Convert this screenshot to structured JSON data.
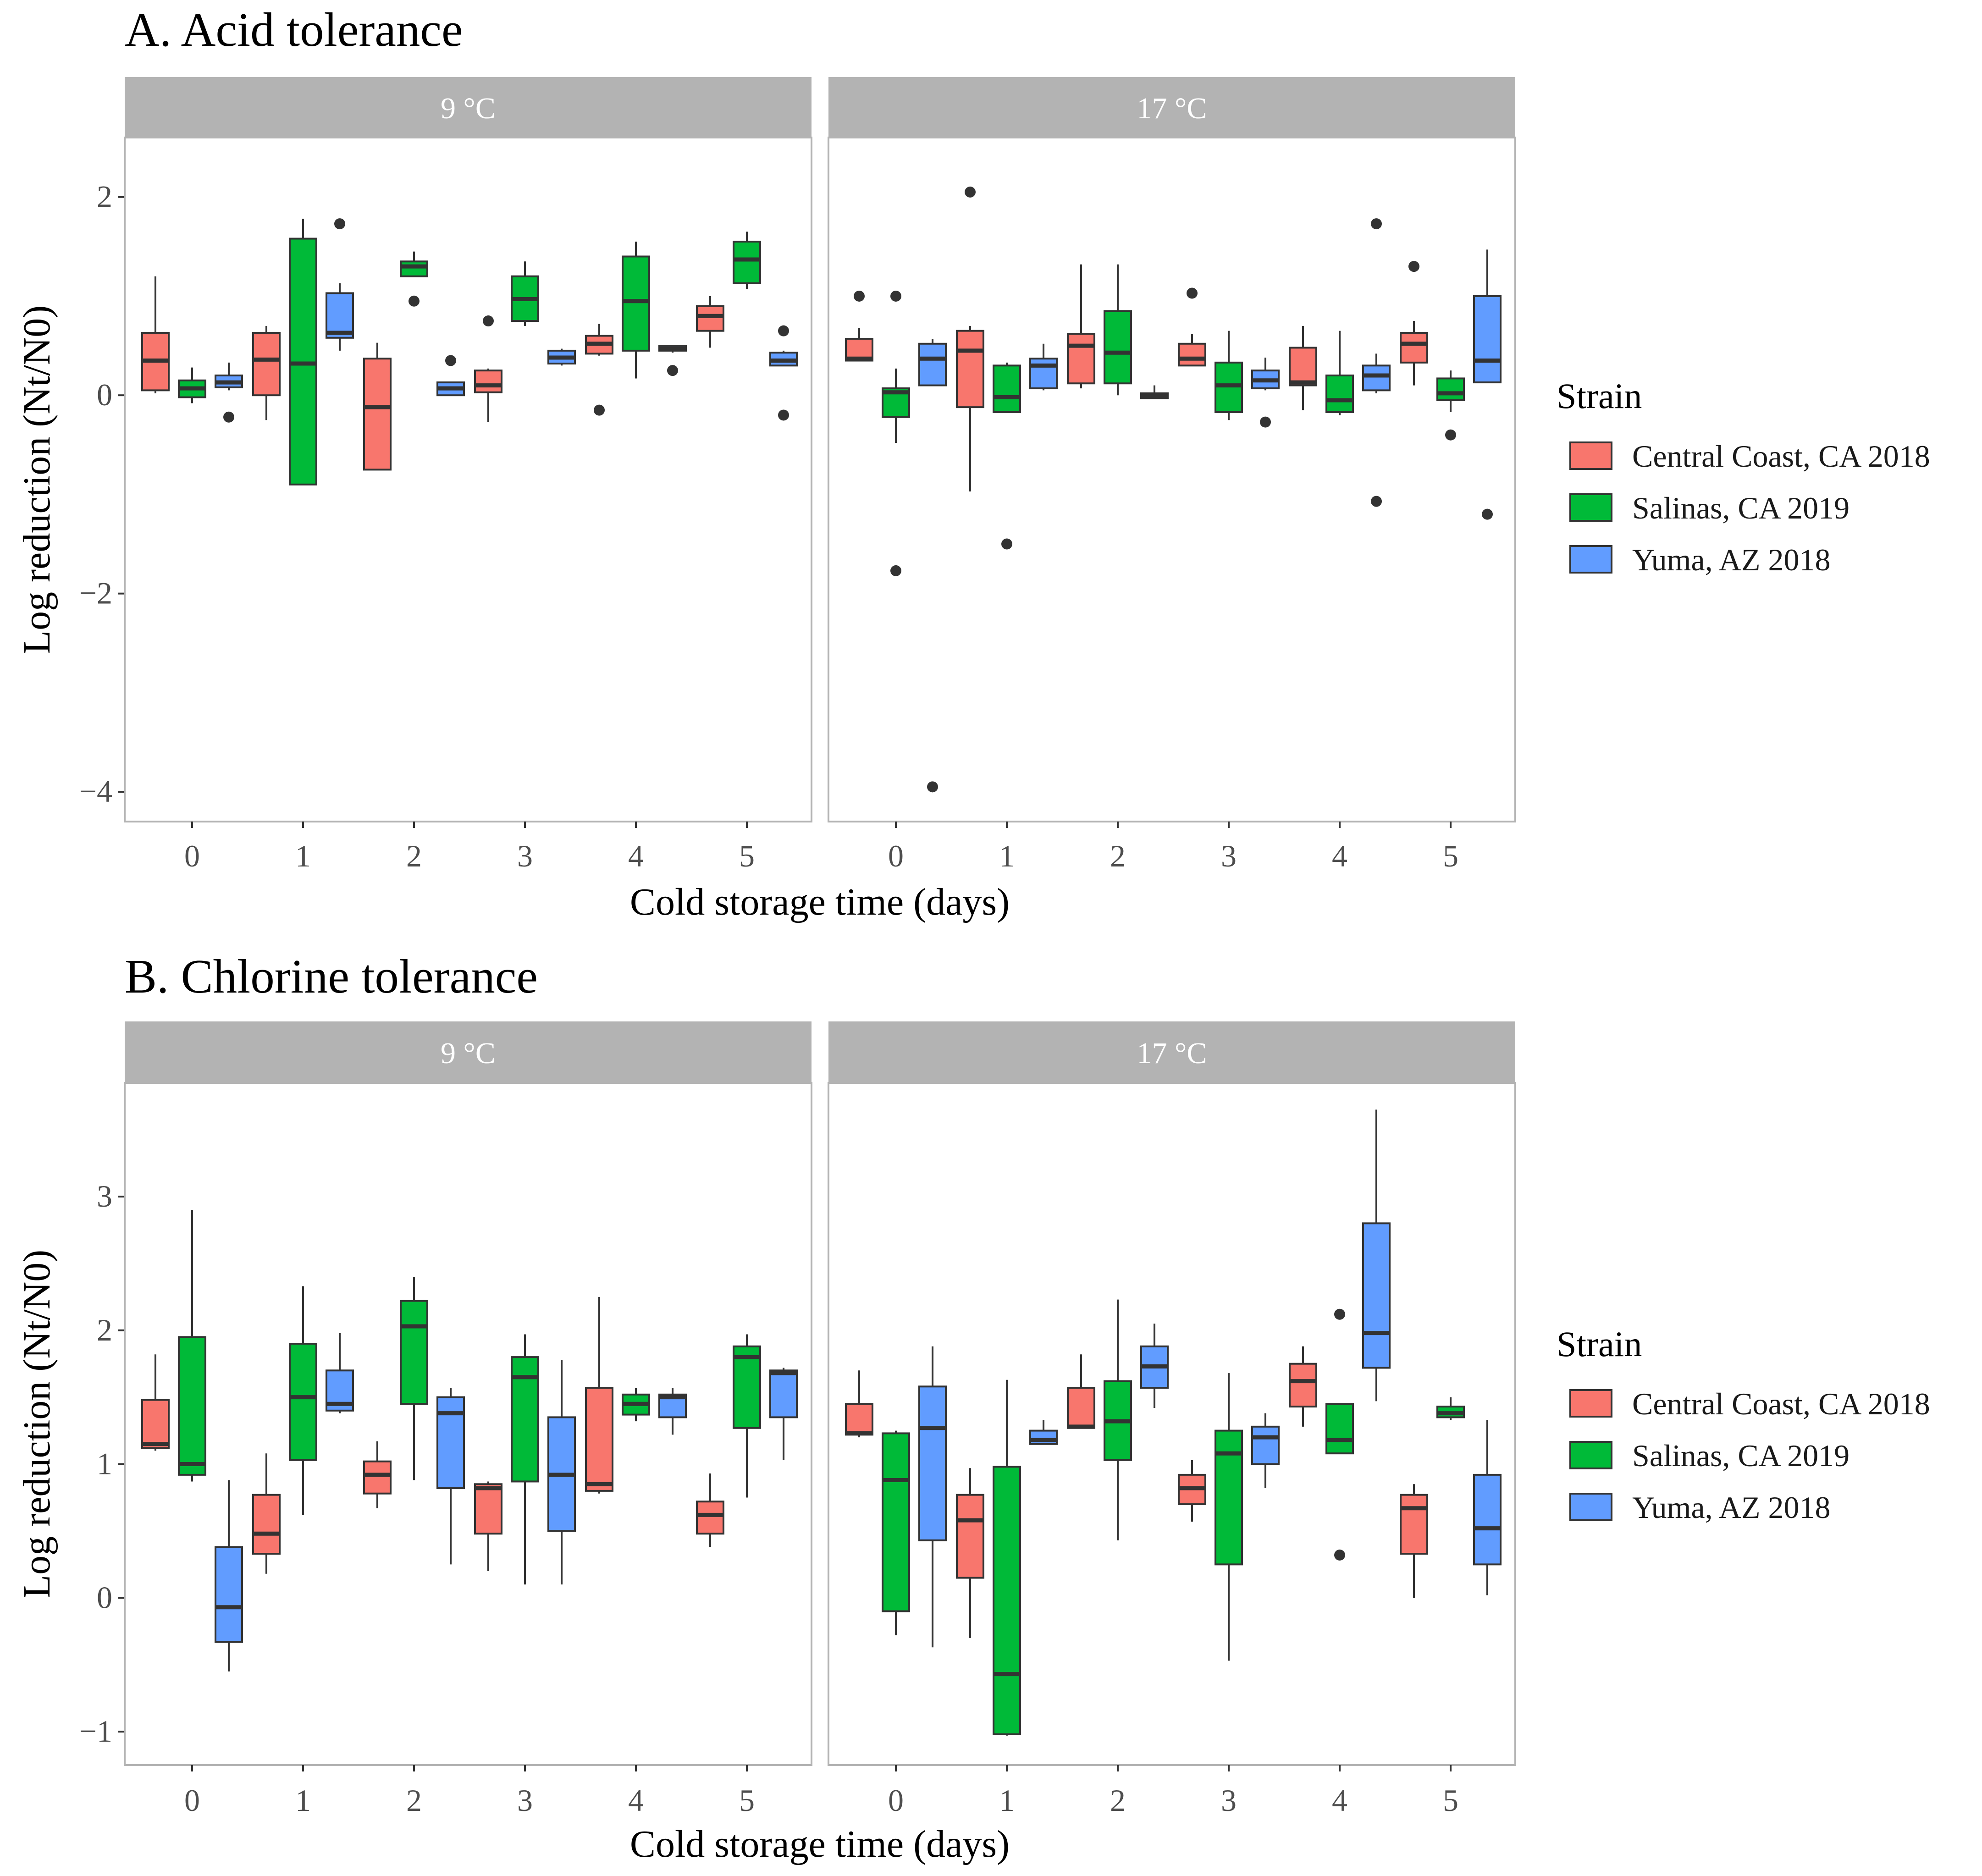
{
  "legend": {
    "title": "Strain",
    "items": [
      {
        "label": "Central Coast, CA 2018",
        "color": "#F8766D"
      },
      {
        "label": "Salinas, CA 2019",
        "color": "#00BA38"
      },
      {
        "label": "Yuma, AZ 2018",
        "color": "#619CFF"
      }
    ]
  },
  "chart_data": [
    {
      "type": "boxplot",
      "title": "A. Acid tolerance",
      "xlabel": "Cold storage time (days)",
      "ylabel": "Log reduction (Nt/N0)",
      "ylim": [
        -4.3,
        2.6
      ],
      "yticks": [
        -4,
        -2,
        0,
        2
      ],
      "yticklabels": [
        "−4",
        "−2",
        "0",
        "2"
      ],
      "categories": [
        "0",
        "1",
        "2",
        "3",
        "4",
        "5"
      ],
      "series_names": [
        "Central Coast, CA 2018",
        "Salinas, CA 2019",
        "Yuma, AZ 2018"
      ],
      "facets": [
        {
          "label": "9 °C",
          "boxes": [
            [
              {
                "lo": 0.02,
                "q1": 0.05,
                "med": 0.35,
                "q3": 0.63,
                "hi": 1.2
              },
              {
                "lo": -0.08,
                "q1": -0.02,
                "med": 0.07,
                "q3": 0.15,
                "hi": 0.28
              },
              {
                "lo": 0.05,
                "q1": 0.08,
                "med": 0.13,
                "q3": 0.2,
                "hi": 0.33,
                "out": [
                  -0.22
                ]
              }
            ],
            [
              {
                "lo": -0.25,
                "q1": 0.0,
                "med": 0.36,
                "q3": 0.63,
                "hi": 0.7
              },
              {
                "lo": -0.9,
                "q1": -0.9,
                "med": 0.32,
                "q3": 1.58,
                "hi": 1.78
              },
              {
                "lo": 0.45,
                "q1": 0.58,
                "med": 0.63,
                "q3": 1.03,
                "hi": 1.13,
                "out": [
                  1.73
                ]
              }
            ],
            [
              {
                "lo": -0.75,
                "q1": -0.75,
                "med": -0.12,
                "q3": 0.37,
                "hi": 0.53
              },
              {
                "lo": 1.2,
                "q1": 1.2,
                "med": 1.3,
                "q3": 1.35,
                "hi": 1.45,
                "out": [
                  0.95
                ]
              },
              {
                "lo": 0.0,
                "q1": 0.0,
                "med": 0.07,
                "q3": 0.13,
                "hi": 0.13,
                "out": [
                  0.35
                ]
              }
            ],
            [
              {
                "lo": -0.27,
                "q1": 0.03,
                "med": 0.1,
                "q3": 0.25,
                "hi": 0.27,
                "out": [
                  0.75
                ]
              },
              {
                "lo": 0.7,
                "q1": 0.75,
                "med": 0.97,
                "q3": 1.2,
                "hi": 1.35
              },
              {
                "lo": 0.3,
                "q1": 0.32,
                "med": 0.38,
                "q3": 0.45,
                "hi": 0.47
              }
            ],
            [
              {
                "lo": 0.4,
                "q1": 0.42,
                "med": 0.52,
                "q3": 0.6,
                "hi": 0.72,
                "out": [
                  -0.15
                ]
              },
              {
                "lo": 0.17,
                "q1": 0.45,
                "med": 0.95,
                "q3": 1.4,
                "hi": 1.55
              },
              {
                "lo": 0.43,
                "q1": 0.45,
                "med": 0.47,
                "q3": 0.5,
                "hi": 0.5,
                "out": [
                  0.25
                ]
              }
            ],
            [
              {
                "lo": 0.48,
                "q1": 0.65,
                "med": 0.8,
                "q3": 0.9,
                "hi": 1.0
              },
              {
                "lo": 1.07,
                "q1": 1.13,
                "med": 1.37,
                "q3": 1.55,
                "hi": 1.65
              },
              {
                "lo": 0.3,
                "q1": 0.3,
                "med": 0.35,
                "q3": 0.43,
                "hi": 0.45,
                "out": [
                  0.65,
                  -0.2
                ]
              }
            ]
          ]
        },
        {
          "label": "17 °C",
          "boxes": [
            [
              {
                "lo": 0.35,
                "q1": 0.35,
                "med": 0.37,
                "q3": 0.57,
                "hi": 0.68,
                "out": [
                  1.0
                ]
              },
              {
                "lo": -0.48,
                "q1": -0.22,
                "med": 0.03,
                "q3": 0.07,
                "hi": 0.27,
                "out": [
                  1.0,
                  -1.77
                ]
              },
              {
                "lo": 0.1,
                "q1": 0.1,
                "med": 0.37,
                "q3": 0.52,
                "hi": 0.57,
                "out": [
                  -3.95
                ]
              }
            ],
            [
              {
                "lo": -0.97,
                "q1": -0.12,
                "med": 0.45,
                "q3": 0.65,
                "hi": 0.7,
                "out": [
                  2.05
                ]
              },
              {
                "lo": -0.17,
                "q1": -0.17,
                "med": -0.02,
                "q3": 0.3,
                "hi": 0.33,
                "out": [
                  -1.5
                ]
              },
              {
                "lo": 0.05,
                "q1": 0.07,
                "med": 0.3,
                "q3": 0.37,
                "hi": 0.52
              }
            ],
            [
              {
                "lo": 0.07,
                "q1": 0.12,
                "med": 0.5,
                "q3": 0.62,
                "hi": 1.32
              },
              {
                "lo": 0.0,
                "q1": 0.12,
                "med": 0.43,
                "q3": 0.85,
                "hi": 1.32
              },
              {
                "lo": -0.03,
                "q1": -0.03,
                "med": -0.01,
                "q3": 0.02,
                "hi": 0.1
              }
            ],
            [
              {
                "lo": 0.3,
                "q1": 0.3,
                "med": 0.37,
                "q3": 0.52,
                "hi": 0.62,
                "out": [
                  1.03
                ]
              },
              {
                "lo": -0.25,
                "q1": -0.17,
                "med": 0.1,
                "q3": 0.33,
                "hi": 0.65
              },
              {
                "lo": 0.05,
                "q1": 0.07,
                "med": 0.15,
                "q3": 0.25,
                "hi": 0.38,
                "out": [
                  -0.27
                ]
              }
            ],
            [
              {
                "lo": -0.15,
                "q1": 0.1,
                "med": 0.13,
                "q3": 0.48,
                "hi": 0.7
              },
              {
                "lo": -0.2,
                "q1": -0.17,
                "med": -0.05,
                "q3": 0.2,
                "hi": 0.65
              },
              {
                "lo": 0.02,
                "q1": 0.05,
                "med": 0.2,
                "q3": 0.3,
                "hi": 0.42,
                "out": [
                  1.73,
                  -1.07
                ]
              }
            ],
            [
              {
                "lo": 0.1,
                "q1": 0.33,
                "med": 0.52,
                "q3": 0.63,
                "hi": 0.75,
                "out": [
                  1.3
                ]
              },
              {
                "lo": -0.17,
                "q1": -0.05,
                "med": 0.02,
                "q3": 0.17,
                "hi": 0.25,
                "out": [
                  -0.4
                ]
              },
              {
                "lo": 0.13,
                "q1": 0.13,
                "med": 0.35,
                "q3": 1.0,
                "hi": 1.47,
                "out": [
                  -1.2
                ]
              }
            ]
          ]
        }
      ]
    },
    {
      "type": "boxplot",
      "title": "B. Chlorine tolerance",
      "xlabel": "Cold storage time (days)",
      "ylabel": "Log reduction (Nt/N0)",
      "ylim": [
        -1.25,
        3.85
      ],
      "yticks": [
        -1,
        0,
        1,
        2,
        3
      ],
      "yticklabels": [
        "−1",
        "0",
        "1",
        "2",
        "3"
      ],
      "categories": [
        "0",
        "1",
        "2",
        "3",
        "4",
        "5"
      ],
      "series_names": [
        "Central Coast, CA 2018",
        "Salinas, CA 2019",
        "Yuma, AZ 2018"
      ],
      "facets": [
        {
          "label": "9 °C",
          "boxes": [
            [
              {
                "lo": 1.1,
                "q1": 1.12,
                "med": 1.15,
                "q3": 1.48,
                "hi": 1.82
              },
              {
                "lo": 0.87,
                "q1": 0.92,
                "med": 1.0,
                "q3": 1.95,
                "hi": 2.9
              },
              {
                "lo": -0.55,
                "q1": -0.33,
                "med": -0.07,
                "q3": 0.38,
                "hi": 0.88
              }
            ],
            [
              {
                "lo": 0.18,
                "q1": 0.33,
                "med": 0.48,
                "q3": 0.77,
                "hi": 1.08
              },
              {
                "lo": 0.62,
                "q1": 1.03,
                "med": 1.5,
                "q3": 1.9,
                "hi": 2.33
              },
              {
                "lo": 1.38,
                "q1": 1.4,
                "med": 1.45,
                "q3": 1.7,
                "hi": 1.98
              }
            ],
            [
              {
                "lo": 0.67,
                "q1": 0.78,
                "med": 0.92,
                "q3": 1.02,
                "hi": 1.17
              },
              {
                "lo": 0.88,
                "q1": 1.45,
                "med": 2.03,
                "q3": 2.22,
                "hi": 2.4
              },
              {
                "lo": 0.25,
                "q1": 0.82,
                "med": 1.38,
                "q3": 1.5,
                "hi": 1.57
              }
            ],
            [
              {
                "lo": 0.2,
                "q1": 0.48,
                "med": 0.82,
                "q3": 0.85,
                "hi": 0.87
              },
              {
                "lo": 0.1,
                "q1": 0.87,
                "med": 1.65,
                "q3": 1.8,
                "hi": 1.97
              },
              {
                "lo": 0.1,
                "q1": 0.5,
                "med": 0.92,
                "q3": 1.35,
                "hi": 1.78
              }
            ],
            [
              {
                "lo": 0.78,
                "q1": 0.8,
                "med": 0.85,
                "q3": 1.57,
                "hi": 2.25
              },
              {
                "lo": 1.32,
                "q1": 1.37,
                "med": 1.45,
                "q3": 1.52,
                "hi": 1.57
              },
              {
                "lo": 1.22,
                "q1": 1.35,
                "med": 1.5,
                "q3": 1.52,
                "hi": 1.57
              }
            ],
            [
              {
                "lo": 0.38,
                "q1": 0.48,
                "med": 0.62,
                "q3": 0.72,
                "hi": 0.93
              },
              {
                "lo": 0.75,
                "q1": 1.27,
                "med": 1.8,
                "q3": 1.88,
                "hi": 1.97
              },
              {
                "lo": 1.03,
                "q1": 1.35,
                "med": 1.68,
                "q3": 1.7,
                "hi": 1.72
              }
            ]
          ]
        },
        {
          "label": "17 °C",
          "boxes": [
            [
              {
                "lo": 1.2,
                "q1": 1.22,
                "med": 1.23,
                "q3": 1.45,
                "hi": 1.7
              },
              {
                "lo": -0.28,
                "q1": -0.1,
                "med": 0.88,
                "q3": 1.23,
                "hi": 1.25
              },
              {
                "lo": -0.37,
                "q1": 0.43,
                "med": 1.27,
                "q3": 1.58,
                "hi": 1.88
              }
            ],
            [
              {
                "lo": -0.3,
                "q1": 0.15,
                "med": 0.58,
                "q3": 0.77,
                "hi": 0.97
              },
              {
                "lo": -1.03,
                "q1": -1.02,
                "med": -0.57,
                "q3": 0.98,
                "hi": 1.63
              },
              {
                "lo": 1.15,
                "q1": 1.15,
                "med": 1.18,
                "q3": 1.25,
                "hi": 1.33
              }
            ],
            [
              {
                "lo": 1.27,
                "q1": 1.27,
                "med": 1.28,
                "q3": 1.57,
                "hi": 1.82
              },
              {
                "lo": 0.43,
                "q1": 1.03,
                "med": 1.32,
                "q3": 1.62,
                "hi": 2.23
              },
              {
                "lo": 1.42,
                "q1": 1.57,
                "med": 1.73,
                "q3": 1.88,
                "hi": 2.05
              }
            ],
            [
              {
                "lo": 0.57,
                "q1": 0.7,
                "med": 0.82,
                "q3": 0.92,
                "hi": 1.03
              },
              {
                "lo": -0.47,
                "q1": 0.25,
                "med": 1.08,
                "q3": 1.25,
                "hi": 1.68
              },
              {
                "lo": 0.82,
                "q1": 1.0,
                "med": 1.2,
                "q3": 1.28,
                "hi": 1.38
              }
            ],
            [
              {
                "lo": 1.28,
                "q1": 1.43,
                "med": 1.62,
                "q3": 1.75,
                "hi": 1.88
              },
              {
                "lo": 1.08,
                "q1": 1.08,
                "med": 1.18,
                "q3": 1.45,
                "hi": 1.45,
                "out": [
                  2.12,
                  0.32
                ]
              },
              {
                "lo": 1.47,
                "q1": 1.72,
                "med": 1.98,
                "q3": 2.8,
                "hi": 3.65
              }
            ],
            [
              {
                "lo": 0.0,
                "q1": 0.33,
                "med": 0.67,
                "q3": 0.77,
                "hi": 0.85
              },
              {
                "lo": 1.33,
                "q1": 1.35,
                "med": 1.38,
                "q3": 1.43,
                "hi": 1.5
              },
              {
                "lo": 0.02,
                "q1": 0.25,
                "med": 0.52,
                "q3": 0.92,
                "hi": 1.33
              }
            ]
          ]
        }
      ]
    }
  ]
}
